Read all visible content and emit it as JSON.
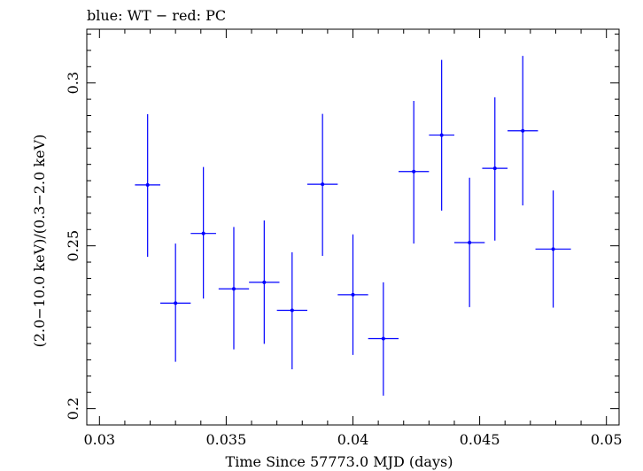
{
  "chart_data": {
    "type": "scatter",
    "title": "blue: WT − red: PC",
    "xlabel": "Time Since 57773.0 MJD (days)",
    "ylabel": "(2.0−10.0 keV)/(0.3−2.0 keV)",
    "xlim": [
      0.0295,
      0.0505
    ],
    "ylim": [
      0.195,
      0.3165
    ],
    "xticks": [
      {
        "value": 0.03,
        "label": "0.03"
      },
      {
        "value": 0.035,
        "label": "0.035"
      },
      {
        "value": 0.04,
        "label": "0.04"
      },
      {
        "value": 0.045,
        "label": "0.045"
      },
      {
        "value": 0.05,
        "label": "0.05"
      }
    ],
    "yticks": [
      {
        "value": 0.2,
        "label": "0.2"
      },
      {
        "value": 0.25,
        "label": "0.25"
      },
      {
        "value": 0.3,
        "label": "0.3"
      }
    ],
    "grid": false,
    "series": [
      {
        "color": "#0000ff",
        "points": [
          {
            "x": 0.0319,
            "y": 0.2687,
            "xerr": 0.0005,
            "ylo": 0.2466,
            "yhi": 0.2904
          },
          {
            "x": 0.033,
            "y": 0.2324,
            "xerr": 0.0006,
            "ylo": 0.2144,
            "yhi": 0.2507
          },
          {
            "x": 0.0341,
            "y": 0.2538,
            "xerr": 0.0005,
            "ylo": 0.2338,
            "yhi": 0.2742
          },
          {
            "x": 0.0353,
            "y": 0.2368,
            "xerr": 0.0006,
            "ylo": 0.2182,
            "yhi": 0.2558
          },
          {
            "x": 0.0365,
            "y": 0.2388,
            "xerr": 0.0006,
            "ylo": 0.2199,
            "yhi": 0.2578
          },
          {
            "x": 0.0376,
            "y": 0.2302,
            "xerr": 0.0006,
            "ylo": 0.2121,
            "yhi": 0.248
          },
          {
            "x": 0.0388,
            "y": 0.2689,
            "xerr": 0.0006,
            "ylo": 0.2469,
            "yhi": 0.2905
          },
          {
            "x": 0.04,
            "y": 0.235,
            "xerr": 0.0006,
            "ylo": 0.2165,
            "yhi": 0.2535
          },
          {
            "x": 0.0412,
            "y": 0.2215,
            "xerr": 0.0006,
            "ylo": 0.204,
            "yhi": 0.2388
          },
          {
            "x": 0.0424,
            "y": 0.2728,
            "xerr": 0.0006,
            "ylo": 0.2507,
            "yhi": 0.2945
          },
          {
            "x": 0.0435,
            "y": 0.284,
            "xerr": 0.0005,
            "ylo": 0.2608,
            "yhi": 0.3071
          },
          {
            "x": 0.0446,
            "y": 0.251,
            "xerr": 0.0006,
            "ylo": 0.2312,
            "yhi": 0.2709
          },
          {
            "x": 0.0456,
            "y": 0.2738,
            "xerr": 0.0005,
            "ylo": 0.2516,
            "yhi": 0.2956
          },
          {
            "x": 0.0467,
            "y": 0.2853,
            "xerr": 0.0006,
            "ylo": 0.2624,
            "yhi": 0.3083
          },
          {
            "x": 0.0479,
            "y": 0.249,
            "xerr": 0.0007,
            "ylo": 0.231,
            "yhi": 0.267
          }
        ]
      }
    ]
  }
}
